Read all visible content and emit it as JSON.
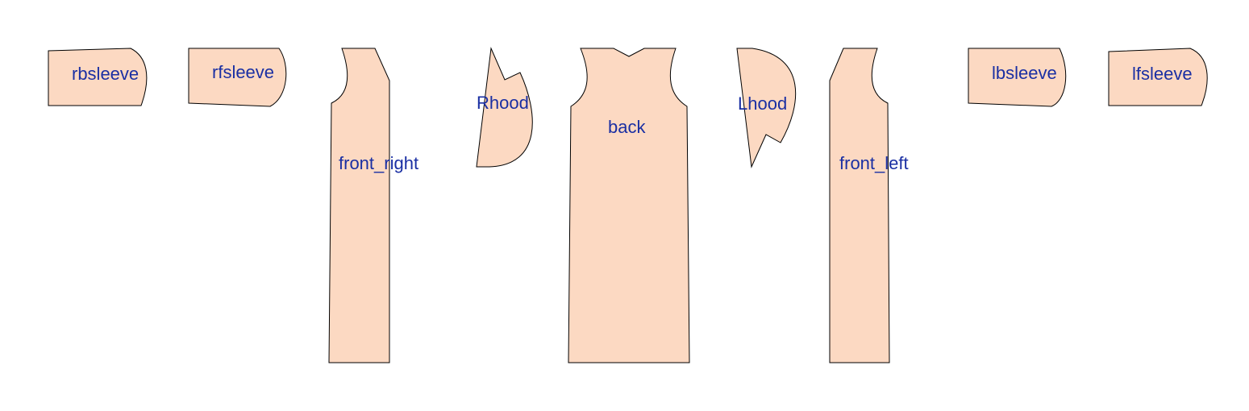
{
  "colors": {
    "piece_fill": "#fcd9c2",
    "outline": "#000000",
    "label": "#1a2fa3",
    "background": "#ffffff"
  },
  "pieces": [
    {
      "id": "rbsleeve",
      "label": "rbsleeve"
    },
    {
      "id": "rfsleeve",
      "label": "rfsleeve"
    },
    {
      "id": "front_right",
      "label": "front_right"
    },
    {
      "id": "rhood",
      "label": "Rhood"
    },
    {
      "id": "back",
      "label": "back"
    },
    {
      "id": "lhood",
      "label": "Lhood"
    },
    {
      "id": "front_left",
      "label": "front_left"
    },
    {
      "id": "lbsleeve",
      "label": "lbsleeve"
    },
    {
      "id": "lfsleeve",
      "label": "lfsleeve"
    }
  ]
}
